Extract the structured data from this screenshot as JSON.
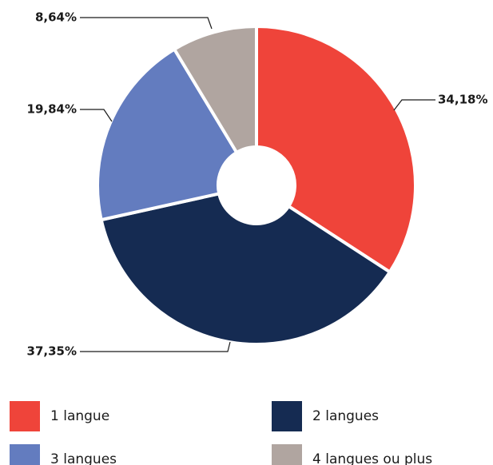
{
  "chart_data": {
    "type": "donut",
    "categories": [
      "1 langue",
      "2 langues",
      "3 langues",
      "4 langues ou plus"
    ],
    "values": [
      34.18,
      37.35,
      19.84,
      8.64
    ],
    "value_labels": [
      "34,18%",
      "37,35%",
      "19,84%",
      "8,64%"
    ],
    "colors": [
      "#ef443a",
      "#152b52",
      "#637cbf",
      "#b0a5a0"
    ]
  }
}
